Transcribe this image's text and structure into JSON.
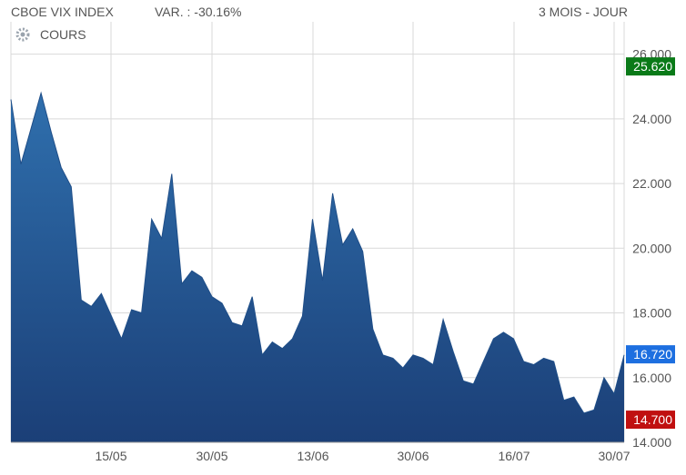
{
  "header": {
    "title": "CBOE VIX INDEX",
    "variation": "VAR. : -30.16%",
    "period": "3 MOIS - JOUR"
  },
  "legend": {
    "label": "COURS",
    "icon": "gear-icon"
  },
  "colors": {
    "area_top": "#2f6fad",
    "area_bottom": "#1b3f77",
    "line": "#1f4e88",
    "badge_high": "#0a7a18",
    "badge_current": "#1d6fe0",
    "badge_low": "#c01010",
    "grid": "#d9d9d9"
  },
  "chart_data": {
    "type": "area",
    "title": "",
    "ylim": [
      14,
      27
    ],
    "yticks": [
      14,
      16,
      18,
      20,
      22,
      24,
      26
    ],
    "ytick_labels": [
      "14.000",
      "16.000",
      "18.000",
      "20.000",
      "22.000",
      "24.000",
      "26.000"
    ],
    "xticks": [
      "15/05",
      "30/05",
      "13/06",
      "30/06",
      "16/07",
      "30/07"
    ],
    "grid": true,
    "badges": {
      "high": "25.620",
      "current": "16.720",
      "low": "14.700"
    },
    "series": [
      {
        "values": [
          24.6,
          22.6,
          23.7,
          24.8,
          23.6,
          22.5,
          21.9,
          18.4,
          18.2,
          18.6,
          17.9,
          17.2,
          18.1,
          18.0,
          20.9,
          20.3,
          22.3,
          18.9,
          19.3,
          19.1,
          18.5,
          18.3,
          17.7,
          17.6,
          18.5,
          16.7,
          17.1,
          16.9,
          17.2,
          17.9,
          20.9,
          19.0,
          21.7,
          20.1,
          20.6,
          19.9,
          17.5,
          16.7,
          16.6,
          16.3,
          16.7,
          16.6,
          16.4,
          17.8,
          16.8,
          15.9,
          15.8,
          16.5,
          17.2,
          17.4,
          17.2,
          16.5,
          16.4,
          16.6,
          16.5,
          15.3,
          15.4,
          14.9,
          15.0,
          16.0,
          15.5,
          16.7
        ]
      }
    ]
  }
}
